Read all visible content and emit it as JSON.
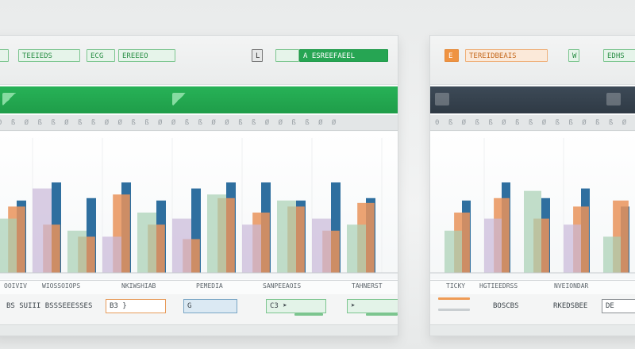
{
  "left_panel": {
    "toolbar": {
      "tag1": "TEEIEDS",
      "tag2": "ECG",
      "tag3": "EREEEO",
      "tag4": "L",
      "tag5": "A  ESREEFAEEL"
    },
    "ruler_text": "0 ß Ø ß ß Ø ß ß Ø Ø ß ß Ø Ø ß ß Ø Ø ß ß Ø Ø ß ß Ø Ø",
    "xlabels": [
      "OOIVIV",
      "WIOSSOIOPS",
      "NKIWSHIAB",
      "PEMEDIA",
      "SANPEEAOIS",
      "TAHNERST"
    ],
    "footer": {
      "box1": "BS SUIII BSSSEEESSES",
      "box2": "B3 }",
      "box3": "G",
      "box4": "C3 ➤",
      "box5": "➤"
    }
  },
  "right_panel": {
    "toolbar": {
      "tag1": "E",
      "tag2": "TEREIDBEAIS",
      "tag3": "W",
      "tag4": "EDHS"
    },
    "ruler_text": "0 ß Ø ß ß Ø ß ß Ø ß ß Ø ß ß Ø Ø",
    "xlabels": [
      "TICKY",
      "HGTIEEDRSS",
      "NVEIONDAR"
    ],
    "footer": {
      "box1": "BOSCBS",
      "box2": "RKEDSBEE",
      "box3": "DE"
    }
  },
  "chart_data": [
    {
      "type": "bar",
      "series": [
        {
          "values": [
            0.6,
            0.75,
            0.62,
            0.75,
            0.6,
            0.7,
            0.75,
            0.75,
            0.6,
            0.75,
            0.62
          ]
        },
        {
          "values": [
            0.55,
            0.4,
            0.3,
            0.65,
            0.4,
            0.28,
            0.62,
            0.5,
            0.55,
            0.35,
            0.58
          ]
        },
        {
          "values": [
            0.45,
            0.7,
            0.35,
            0.3,
            0.5,
            0.45,
            0.65,
            0.4,
            0.6,
            0.45,
            0.4
          ]
        }
      ],
      "colors": [
        "#2f6f9f",
        "#e9935a",
        "#c9b8d8",
        "#a8d0b4"
      ]
    },
    {
      "type": "bar",
      "series": [
        {
          "values": [
            0.6,
            0.75,
            0.62,
            0.7,
            0.55
          ]
        },
        {
          "values": [
            0.5,
            0.62,
            0.45,
            0.55,
            0.6
          ]
        },
        {
          "values": [
            0.35,
            0.45,
            0.68,
            0.4,
            0.3
          ]
        }
      ],
      "colors": [
        "#2f6f9f",
        "#e9935a",
        "#c9b8d8",
        "#a8d0b4"
      ]
    }
  ],
  "colors": {
    "accent_green": "#26a553",
    "accent_dark": "#2f3a45",
    "bar_blue": "#2f6f9f",
    "bar_orange": "#e9935a"
  }
}
